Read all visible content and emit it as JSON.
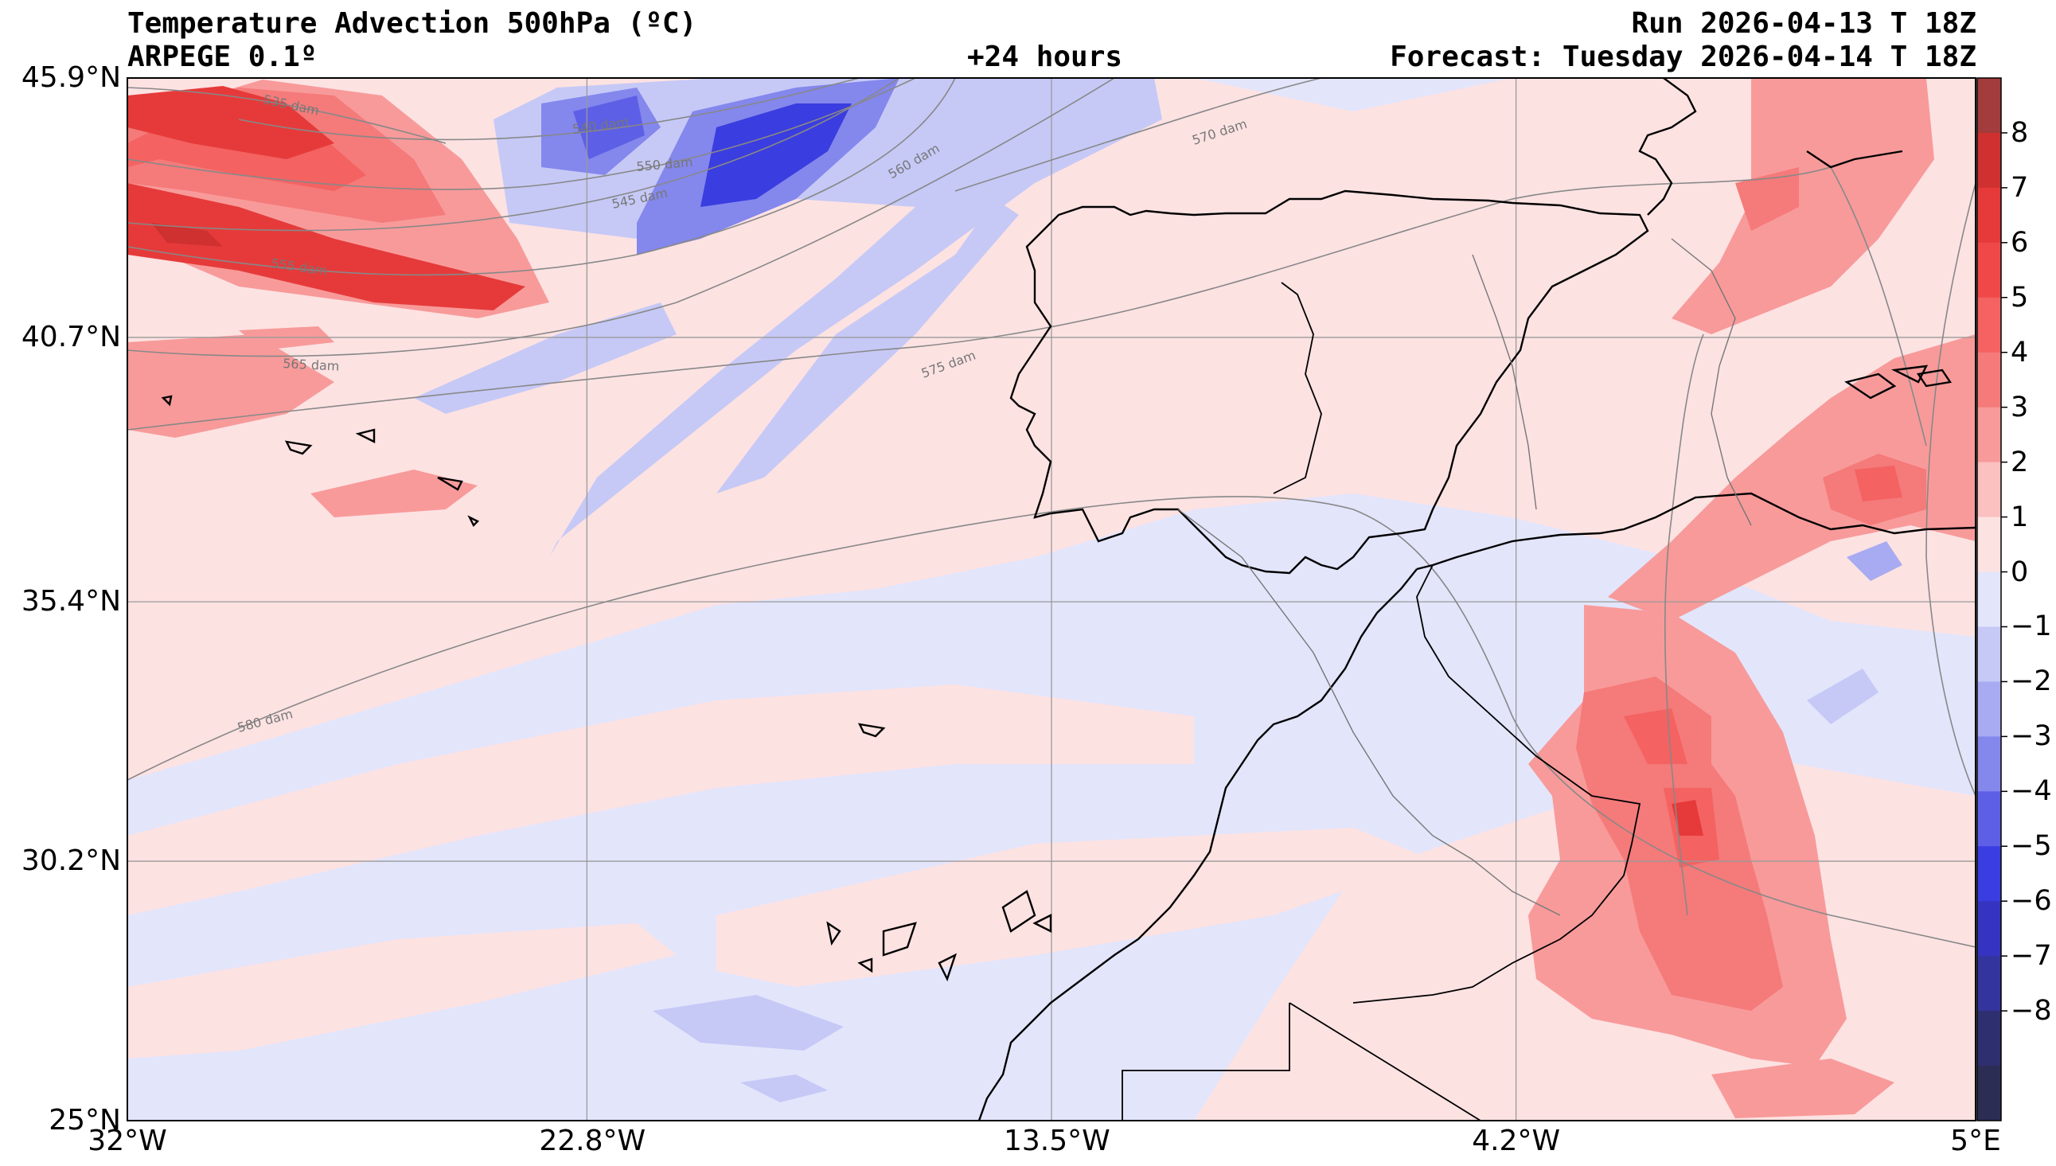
{
  "header": {
    "title": "Temperature Advection  500hPa (ºC)",
    "model": "ARPEGE 0.1º",
    "lead_time": "+24 hours",
    "run": "Run 2026-04-13 T 18Z",
    "forecast": "Forecast: Tuesday 2026-04-14 T 18Z"
  },
  "map": {
    "extent": {
      "lon_min": -32,
      "lon_max": 5,
      "lat_min": 25,
      "lat_max": 45.9
    },
    "lat_ticks": [
      {
        "value": 45.9,
        "label": "45.9°N"
      },
      {
        "value": 40.7,
        "label": "40.7°N"
      },
      {
        "value": 35.4,
        "label": "35.4°N"
      },
      {
        "value": 30.2,
        "label": "30.2°N"
      },
      {
        "value": 25.0,
        "label": "25°N"
      }
    ],
    "lon_ticks": [
      {
        "value": -32,
        "label": "32°W"
      },
      {
        "value": -22.8,
        "label": "22.8°W"
      },
      {
        "value": -13.5,
        "label": "13.5°W"
      },
      {
        "value": -4.2,
        "label": "4.2°W"
      },
      {
        "value": 5,
        "label": "5°E"
      }
    ],
    "gridlines": true,
    "contour_labels": [
      "535 dam",
      "540 dam",
      "545 dam",
      "550 dam",
      "555 dam",
      "560 dam",
      "565 dam",
      "570 dam",
      "575 dam",
      "580 dam"
    ]
  },
  "colorbar": {
    "labels": [
      "8",
      "7",
      "6",
      "5",
      "4",
      "3",
      "2",
      "1",
      "0",
      "−1",
      "−2",
      "−3",
      "−4",
      "−5",
      "−6",
      "−7",
      "−8"
    ],
    "levels": [
      9,
      8,
      7,
      6,
      5,
      4,
      3,
      2,
      1,
      0,
      -1,
      -2,
      -3,
      -4,
      -5,
      -6,
      -7,
      -8,
      -9
    ],
    "colors": [
      "#a33c3c",
      "#cf3030",
      "#e63a3a",
      "#f04848",
      "#f46262",
      "#f57a7a",
      "#f89a9a",
      "#fbc0c0",
      "#fde2e2",
      "#e3e5fb",
      "#c6c9f6",
      "#a8abf1",
      "#8487ec",
      "#5d5fe6",
      "#3a3ddf",
      "#3434c0",
      "#33349c",
      "#2e2f6f",
      "#2c2d55"
    ]
  }
}
